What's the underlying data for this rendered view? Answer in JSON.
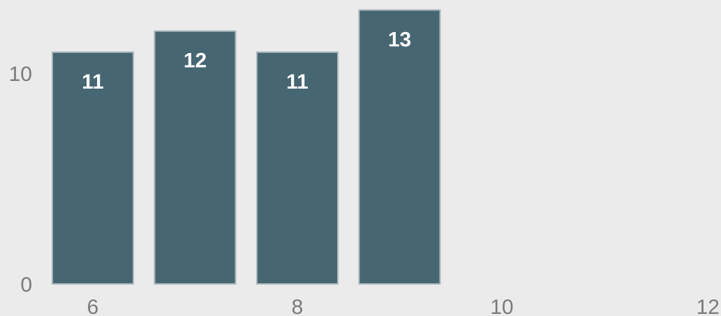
{
  "chart_data": {
    "type": "bar",
    "x": [
      6,
      7,
      8,
      9
    ],
    "values": [
      11,
      12,
      11,
      13
    ],
    "data_labels": [
      "11",
      "12",
      "11",
      "13"
    ],
    "xlim": [
      6,
      12
    ],
    "ylim": [
      0,
      13
    ],
    "x_ticks": [
      "6",
      "8",
      "10",
      "12"
    ],
    "y_ticks": [
      "0",
      "10"
    ],
    "grid": false,
    "colors": {
      "background": "#ebebeb",
      "bar_fill": "#466672",
      "bar_stroke": "#a9b6bc",
      "label": "#ffffff",
      "tick": "#7a7a7a"
    }
  }
}
